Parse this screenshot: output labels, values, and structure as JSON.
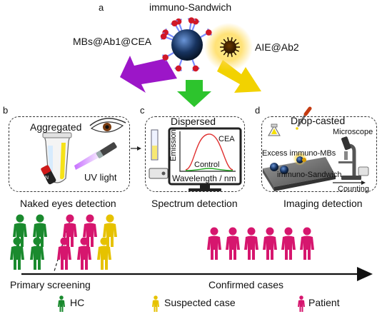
{
  "panels": {
    "a": {
      "letter": "a",
      "title": "immuno-Sandwich",
      "left_label": "MBs@Ab1@CEA",
      "right_label": "AIE@Ab2"
    },
    "b": {
      "letter": "b",
      "title": "Aggregated",
      "uv_label": "UV light",
      "caption": "Naked eyes detection"
    },
    "c": {
      "letter": "c",
      "title": "Dispersed",
      "y_axis": "Emission",
      "x_axis": "Wavelength / nm",
      "curve_high": "CEA",
      "curve_low": "Control",
      "caption": "Spectrum detection"
    },
    "d": {
      "letter": "d",
      "title": "Drop-casted",
      "microscope": "Microscope",
      "excess": "Excess immuno-MBs",
      "sandwich": "immuno-Sandwich",
      "counting": "Counting",
      "caption": "Imaging detection"
    }
  },
  "timeline": {
    "left_label": "Primary screening",
    "right_label": "Confirmed cases"
  },
  "legend": {
    "hc": "HC",
    "suspected": "Suspected case",
    "patient": "Patient"
  },
  "colors": {
    "hc": "#1a8a2e",
    "suspected": "#e6c200",
    "patient": "#d6166e",
    "left_arrow": "#9c16c8",
    "right_arrow": "#f0d000",
    "down_arrow": "#28c228",
    "mb": "#0e2a5a",
    "aie": "#d4a000"
  },
  "people": {
    "primary": [
      {
        "type": "hc"
      },
      {
        "type": "hc"
      },
      {
        "type": "patient"
      },
      {
        "type": "patient"
      },
      {
        "type": "suspected"
      },
      {
        "type": "hc"
      },
      {
        "type": "hc"
      },
      {
        "type": "patient"
      },
      {
        "type": "patient"
      },
      {
        "type": "suspected"
      }
    ],
    "confirmed": [
      {
        "type": "patient"
      },
      {
        "type": "patient"
      },
      {
        "type": "patient"
      },
      {
        "type": "patient"
      },
      {
        "type": "patient"
      },
      {
        "type": "patient"
      }
    ]
  }
}
